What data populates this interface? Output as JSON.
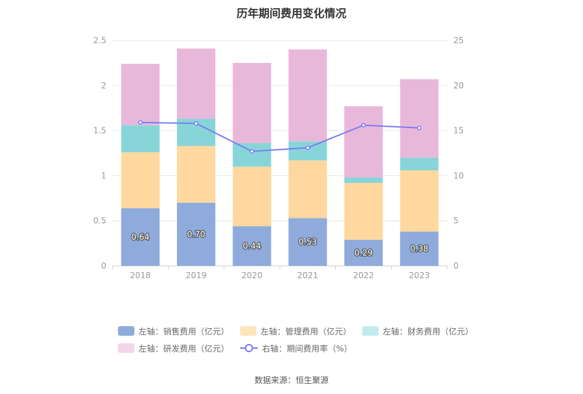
{
  "chart_data": {
    "type": "bar",
    "title": "历年期间费用变化情况",
    "categories": [
      "2018",
      "2019",
      "2020",
      "2021",
      "2022",
      "2023"
    ],
    "stacked": true,
    "y_left": {
      "ticks": [
        "0",
        "0.5",
        "1",
        "1.5",
        "2",
        "2.5"
      ],
      "ylim": [
        0,
        2.5
      ]
    },
    "y_right": {
      "ticks": [
        "0",
        "5",
        "10",
        "15",
        "20",
        "25"
      ],
      "ylim": [
        0,
        25
      ]
    },
    "grid": true,
    "legend_position": "bottom",
    "series": [
      {
        "name": "左轴：销售费用（亿元）",
        "type": "bar",
        "axis": "left",
        "color": "#8fabdb",
        "values": [
          0.64,
          0.7,
          0.44,
          0.53,
          0.29,
          0.38
        ],
        "labels": [
          "0.64",
          "0.70",
          "0.44",
          "0.53",
          "0.29",
          "0.38"
        ]
      },
      {
        "name": "左轴：管理费用（亿元）",
        "type": "bar",
        "axis": "left",
        "color": "#fed89e",
        "values": [
          0.62,
          0.63,
          0.66,
          0.64,
          0.63,
          0.68
        ]
      },
      {
        "name": "左轴：财务费用（亿元）",
        "type": "bar",
        "axis": "left",
        "color": "#88d5d9",
        "values": [
          0.3,
          0.3,
          0.26,
          0.21,
          0.06,
          0.14
        ]
      },
      {
        "name": "左轴：研发费用（亿元）",
        "type": "bar",
        "axis": "left",
        "color": "#e8b8da",
        "values": [
          0.68,
          0.78,
          0.89,
          1.02,
          0.79,
          0.87
        ]
      },
      {
        "name": "右轴：期间费用率（%）",
        "type": "line",
        "axis": "right",
        "color": "#7b7ef0",
        "values": [
          15.9,
          15.8,
          12.7,
          13.1,
          15.6,
          15.3
        ]
      }
    ],
    "legend_swatch_colors": [
      "#8fabdb",
      "#fee3bb",
      "#c2ebed",
      "#f5d4ea"
    ]
  },
  "footer": {
    "source": "数据来源：恒生聚源"
  }
}
